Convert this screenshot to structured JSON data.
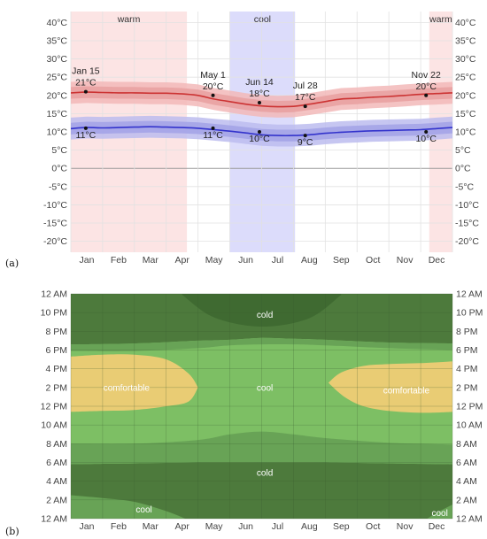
{
  "panel_labels": [
    "(a)",
    "(b)"
  ],
  "chart_data": [
    {
      "type": "line",
      "months": [
        "Jan",
        "Feb",
        "Mar",
        "Apr",
        "May",
        "Jun",
        "Jul",
        "Aug",
        "Sep",
        "Oct",
        "Nov",
        "Dec"
      ],
      "ylim": [
        -23,
        43
      ],
      "yticks": [
        "-20°C",
        "-15°C",
        "-10°C",
        "-5°C",
        "0°C",
        "5°C",
        "10°C",
        "15°C",
        "20°C",
        "25°C",
        "30°C",
        "35°C",
        "40°C"
      ],
      "ytick_values": [
        -20,
        -15,
        -10,
        -5,
        0,
        5,
        10,
        15,
        20,
        25,
        30,
        35,
        40
      ],
      "seasons": [
        {
          "label": "warm",
          "start_month": 0,
          "end_month": 3.65
        },
        {
          "label": "cool",
          "start_month": 5.0,
          "end_month": 7.05
        },
        {
          "label": "warm",
          "start_month": 11.27,
          "end_month": 12
        }
      ],
      "series": [
        {
          "color": "#cc3333",
          "x": [
            0,
            0.5,
            1,
            1.5,
            2,
            2.5,
            3,
            3.5,
            4,
            4.5,
            5,
            5.5,
            6,
            6.5,
            7,
            7.5,
            8,
            8.5,
            9,
            9.5,
            10,
            10.5,
            11,
            11.5,
            12
          ],
          "values": [
            20.7,
            20.9,
            20.8,
            20.7,
            20.7,
            20.6,
            20.6,
            20.4,
            20.0,
            19.0,
            18.3,
            17.6,
            17.1,
            16.9,
            17.0,
            17.6,
            18.3,
            19.0,
            19.2,
            19.5,
            19.7,
            20.0,
            20.3,
            20.5,
            20.7
          ]
        },
        {
          "color": "#3333cc",
          "x": [
            0,
            0.5,
            1,
            1.5,
            2,
            2.5,
            3,
            3.5,
            4,
            4.5,
            5,
            5.5,
            6,
            6.5,
            7,
            7.5,
            8,
            8.5,
            9,
            9.5,
            10,
            10.5,
            11,
            11.5,
            12
          ],
          "values": [
            10.9,
            11.2,
            11.1,
            11.2,
            11.3,
            11.4,
            11.3,
            11.2,
            11.0,
            10.6,
            10.2,
            9.7,
            9.2,
            9.0,
            9.0,
            9.2,
            9.6,
            9.9,
            10.1,
            10.3,
            10.4,
            10.5,
            10.6,
            10.9,
            11.2
          ]
        }
      ],
      "annotations": [
        {
          "x": -0.03,
          "y": 21,
          "date": "Jan 15",
          "value": "21°C",
          "pos": "above"
        },
        {
          "x": -0.03,
          "y": 11,
          "date": "",
          "value": "11°C",
          "pos": "below"
        },
        {
          "x": 3.97,
          "y": 20,
          "date": "May 1",
          "value": "20°C",
          "pos": "above"
        },
        {
          "x": 3.97,
          "y": 11,
          "date": "",
          "value": "11°C",
          "pos": "below"
        },
        {
          "x": 5.43,
          "y": 18,
          "date": "Jun 14",
          "value": "18°C",
          "pos": "above"
        },
        {
          "x": 5.43,
          "y": 10,
          "date": "",
          "value": "10°C",
          "pos": "below"
        },
        {
          "x": 6.87,
          "y": 17,
          "date": "Jul 28",
          "value": "17°C",
          "pos": "above"
        },
        {
          "x": 6.87,
          "y": 9,
          "date": "",
          "value": "9°C",
          "pos": "below"
        },
        {
          "x": 10.67,
          "y": 20,
          "date": "Nov 22",
          "value": "20°C",
          "pos": "above"
        },
        {
          "x": 10.67,
          "y": 10,
          "date": "",
          "value": "10°C",
          "pos": "below"
        }
      ]
    },
    {
      "type": "heatmap",
      "months": [
        "Jan",
        "Feb",
        "Mar",
        "Apr",
        "May",
        "Jun",
        "Jul",
        "Aug",
        "Sep",
        "Oct",
        "Nov",
        "Dec"
      ],
      "hour_labels": [
        "12 AM",
        "2 AM",
        "4 AM",
        "6 AM",
        "8 AM",
        "10 AM",
        "12 PM",
        "2 PM",
        "4 PM",
        "6 PM",
        "8 PM",
        "10 PM",
        "12 AM"
      ],
      "hour_values": [
        0,
        2,
        4,
        6,
        8,
        10,
        12,
        14,
        16,
        18,
        20,
        22,
        24
      ],
      "zone_colors": {
        "cold": "#4d7a3c",
        "cool_light": "#68a356",
        "cool": "#7dbf64",
        "comfortable": "#e9cc74"
      },
      "labels": [
        {
          "text": "cold",
          "month": 6.1,
          "hour": 21.8
        },
        {
          "text": "comfortable",
          "month": 1.75,
          "hour": 14.0
        },
        {
          "text": "cool",
          "month": 6.1,
          "hour": 14.0
        },
        {
          "text": "comfortable",
          "month": 10.55,
          "hour": 13.7
        },
        {
          "text": "cold",
          "month": 6.1,
          "hour": 4.9
        },
        {
          "text": "cool",
          "month": 2.3,
          "hour": 1.0
        },
        {
          "text": "cool",
          "month": 11.6,
          "hour": 0.6
        }
      ]
    }
  ]
}
